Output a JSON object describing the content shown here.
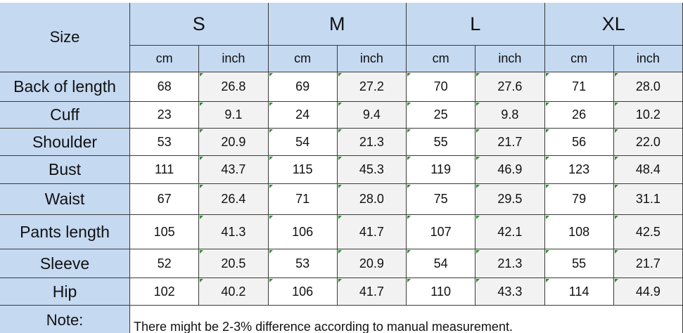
{
  "header": {
    "corner": "Size",
    "sizes": [
      "S",
      "M",
      "L",
      "XL"
    ],
    "units": [
      "cm",
      "inch"
    ]
  },
  "rows": [
    {
      "label": "Back of length",
      "values": [
        "68",
        "26.8",
        "69",
        "27.2",
        "70",
        "27.6",
        "71",
        "28.0"
      ]
    },
    {
      "label": "Cuff",
      "values": [
        "23",
        "9.1",
        "24",
        "9.4",
        "25",
        "9.8",
        "26",
        "10.2"
      ]
    },
    {
      "label": "Shoulder",
      "values": [
        "53",
        "20.9",
        "54",
        "21.3",
        "55",
        "21.7",
        "56",
        "22.0"
      ]
    },
    {
      "label": "Bust",
      "values": [
        "111",
        "43.7",
        "115",
        "45.3",
        "119",
        "46.9",
        "123",
        "48.4"
      ]
    },
    {
      "label": "Waist",
      "values": [
        "67",
        "26.4",
        "71",
        "28.0",
        "75",
        "29.5",
        "79",
        "31.1"
      ]
    },
    {
      "label": "Pants length",
      "values": [
        "105",
        "41.3",
        "106",
        "41.7",
        "107",
        "42.1",
        "108",
        "42.5"
      ]
    },
    {
      "label": "Sleeve",
      "values": [
        "52",
        "20.5",
        "53",
        "20.9",
        "54",
        "21.3",
        "55",
        "21.7"
      ]
    },
    {
      "label": "Hip",
      "values": [
        "102",
        "40.2",
        "106",
        "41.7",
        "110",
        "43.3",
        "114",
        "44.9"
      ]
    }
  ],
  "note": {
    "label": "Note:",
    "text": "There might be 2-3% difference according to manual measurement."
  }
}
